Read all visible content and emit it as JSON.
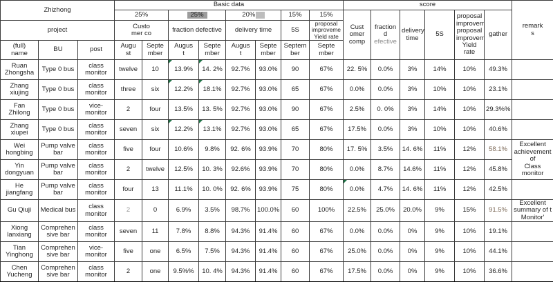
{
  "sheet": {
    "title_cell": "Zhizhong",
    "project_cell": "project",
    "basic_data_label": "Basic data",
    "score_label": "score",
    "remarks_label": "remark\ns",
    "weights": {
      "customer": "25%",
      "fraction": "25%",
      "delivery": "20%",
      "delivery_artifact": "%",
      "five_s": "15%",
      "proposal": "15%"
    },
    "groups": {
      "customer": "Custo\nmer co",
      "fraction": "fraction defective",
      "delivery": "delivery time",
      "five_s": "5S",
      "proposal": "proposal\nimproveme\nYield rate"
    },
    "months": {
      "customer_aug": "Augu\nst",
      "customer_sep": "Septe\nmber",
      "fraction_aug": "Augus\nt",
      "fraction_sep": "Septe\nmber",
      "delivery_aug": "Augus\nt",
      "delivery_sep": "Septe\nmber",
      "five_s_sep": "Septem\nber",
      "proposal_sep": "Septe\nmber"
    },
    "col_headers": {
      "name": "(full)\nname",
      "bu": "BU",
      "post": "post"
    },
    "score_headers": {
      "customer": "Cust\nomer\ncomp",
      "fraction_line1": "fraction d",
      "fraction_line2": "efective",
      "delivery": "delivery\ntime",
      "five_s": "5S",
      "proposal": "proposal\nimproveme\nproposal\nimproveme\nYield rate",
      "gather": "gather"
    }
  },
  "colors": {
    "highlight": "#f8cbad",
    "selection_gray": "#9c9c9c",
    "flag_green": "#1e7145",
    "pagebreak_gray": "#a6a6a6"
  },
  "rows": [
    {
      "name": "Ruan Zhongsha",
      "bu": "Type 0 bus",
      "post": "class monitor",
      "values": [
        "twelve",
        "10",
        "13.9%",
        "14. 2%",
        "92.7%",
        "93.0%",
        "90",
        "67%",
        "22. 5%",
        "0.0%",
        "3%",
        "14%",
        "10%",
        "49.3%"
      ],
      "flags": [
        2,
        3
      ],
      "remark": ""
    },
    {
      "name": "Zhang xiujing",
      "bu": "Type 0 bus",
      "post": "class monitor",
      "values": [
        "three",
        "six",
        "12.2%",
        "18.1%",
        "92.7%",
        "93.0%",
        "65",
        "67%",
        "0.0%",
        "0.0%",
        "3%",
        "10%",
        "10%",
        "23.1%"
      ],
      "flags": [
        2,
        3
      ],
      "remark": ""
    },
    {
      "name": "Fan Zhilong",
      "bu": "Type 0 bus",
      "post": "vice-monitor",
      "values": [
        "2",
        "four",
        "13.5%",
        "13. 5%",
        "92.7%",
        "93.0%",
        "90",
        "67%",
        "2.5%",
        "0. 0%",
        "3%",
        "14%",
        "10%",
        "29.3%%"
      ],
      "flags": [],
      "remark": ""
    },
    {
      "name": "Zhang xiupei",
      "bu": "Type 0 bus",
      "post": "class monitor",
      "values": [
        "seven",
        "six",
        "12.2%",
        "13.1%",
        "92.7%",
        "93.0%",
        "65",
        "67%",
        "17.5%",
        "0.0%",
        "3%",
        "10%",
        "10%",
        "40.6%"
      ],
      "flags": [
        2,
        3
      ],
      "remark": ""
    },
    {
      "name": "Wei hongbing",
      "bu": "Pump valve bar",
      "post": "class monitor",
      "values": [
        "five",
        "four",
        "10.6%",
        "9.8%",
        "92. 6%",
        "93.9%",
        "70",
        "80%",
        "17. 5%",
        "3.5%",
        "14. 6%",
        "11%",
        "12%",
        "58.1%"
      ],
      "flags": [],
      "hl_gather": true,
      "remark": {
        "text": "Excellent\nachievement of\nClass\nmonitor",
        "rowspan": 2
      }
    },
    {
      "name": "Yin dongyuan",
      "bu": "Pump valve bar",
      "post": "class monitor",
      "values": [
        "2",
        "twelve",
        "12.5%",
        "10. 3%",
        "92.6%",
        "93.9%",
        "70",
        "80%",
        "0.0%",
        "8.7%",
        "14.6%",
        "11%",
        "12%",
        "45.8%"
      ],
      "flags": [],
      "remark": "skip"
    },
    {
      "name": "He jiangfang",
      "bu": "Pump valve bar",
      "post": "class monitor",
      "values": [
        "four",
        "13",
        "11.1%",
        "10. 0%",
        "92. 6%",
        "93.9%",
        "75",
        "80%",
        "0.0%",
        "4.7%",
        "14. 6%",
        "11%",
        "12%",
        "42.5%"
      ],
      "flags": [
        8
      ],
      "remark": ""
    },
    {
      "name": "Gu Qiuji",
      "bu": "Medical bus",
      "post": "class monitor",
      "values": [
        "2",
        "0",
        "6.9%",
        "3.5%",
        "98.7%",
        "100.0%",
        "60",
        "100%",
        "22.5%",
        "25.0%",
        "20.0%",
        "9%",
        "15%",
        "91.5%"
      ],
      "flags": [],
      "gray": [
        0
      ],
      "hl_gather": true,
      "remark": {
        "text": "Excellent\nsummary of t\nMonitor'",
        "rowspan": 1
      }
    },
    {
      "name": "Xiong lanxiang",
      "bu": "Comprehensive bar",
      "post": "class monitor",
      "values": [
        "seven",
        "11",
        "7.8%",
        "8.8%",
        "94.3%",
        "91.4%",
        "60",
        "67%",
        "0.0%",
        "0.0%",
        "0%",
        "9%",
        "10%",
        "19.1%"
      ],
      "flags": [],
      "remark": ""
    },
    {
      "name": "Tian Yinghong",
      "bu": "Comprehensive bar",
      "post": "vice-monitor",
      "values": [
        "five",
        "one",
        "6.5%",
        "7.5%",
        "94.3%",
        "91.4%",
        "60",
        "67%",
        "25.0%",
        "0.0%",
        "0%",
        "9%",
        "10%",
        "44.1%"
      ],
      "flags": [],
      "remark": ""
    },
    {
      "name": "Chen Yucheng",
      "bu": "Comprehensive bar",
      "post": "class monitor",
      "post_small": true,
      "values": [
        "2",
        "one",
        "9.5%%",
        "10. 4%",
        "94.3%",
        "91.4%",
        "60",
        "67%",
        "17.5%",
        "0.0%",
        "0%",
        "9%",
        "10%",
        "36.6%"
      ],
      "flags": [],
      "remark": ""
    }
  ]
}
